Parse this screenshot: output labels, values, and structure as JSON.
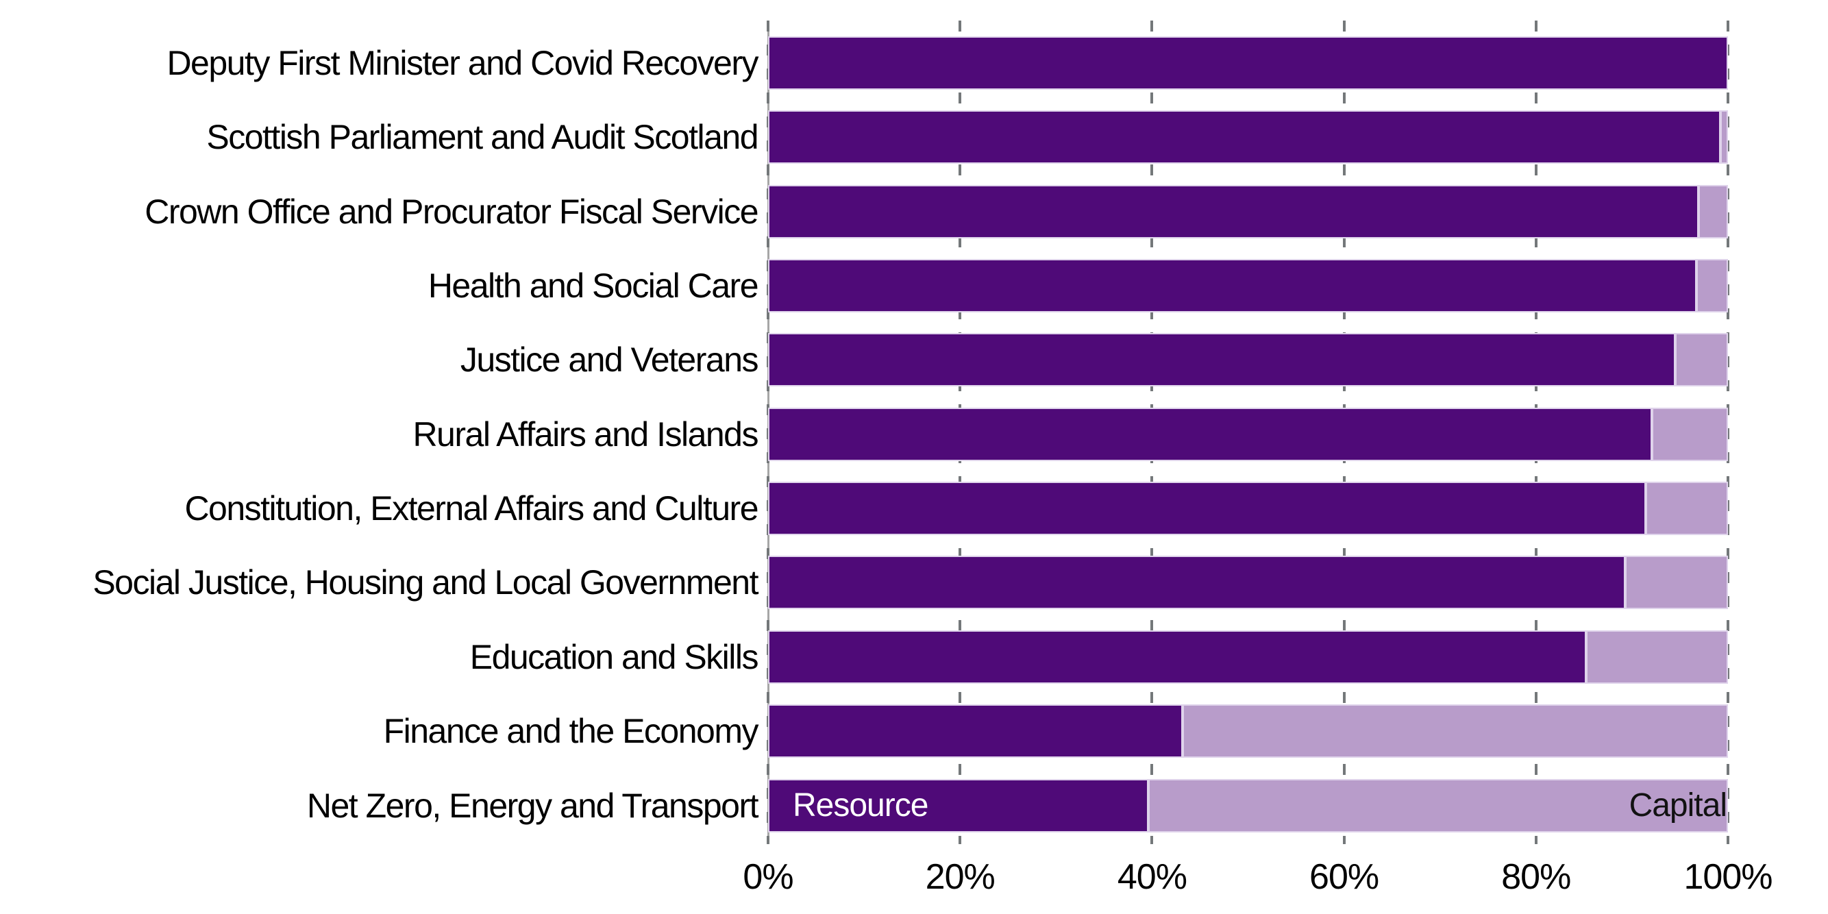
{
  "chart_data": {
    "type": "bar",
    "orientation": "horizontal",
    "stacked": true,
    "title": "",
    "xlabel": "",
    "ylabel": "",
    "categories": [
      "Deputy First Minister and Covid Recovery",
      "Scottish Parliament and Audit Scotland",
      "Crown Office and Procurator Fiscal Service",
      "Health and Social Care",
      "Justice and Veterans",
      "Rural Affairs and Islands",
      "Constitution, External Affairs and Culture",
      "Social Justice, Housing and Local Government",
      "Education and Skills",
      "Finance and the Economy",
      "Net Zero, Energy and Transport"
    ],
    "series": [
      {
        "name": "Resource",
        "color": "#4f0a78",
        "values": [
          100,
          99.2,
          96.9,
          96.7,
          94.5,
          92.1,
          91.4,
          89.3,
          85.2,
          43.2,
          39.6
        ]
      },
      {
        "name": "Capital",
        "color": "#b89cca",
        "values": [
          0,
          0.8,
          3.1,
          3.3,
          5.5,
          7.9,
          8.6,
          10.7,
          14.8,
          56.8,
          60.4
        ]
      }
    ],
    "x_axis": {
      "range": [
        0,
        100
      ],
      "tick_values": [
        0,
        20,
        40,
        60,
        80,
        100
      ],
      "tick_labels": [
        "0%",
        "20%",
        "40%",
        "60%",
        "80%",
        "100%"
      ]
    },
    "grid": "dashed-vertical-gray",
    "legend": {
      "resource_label": "Resource",
      "capital_label": "Capital",
      "position": "inside-last-bar"
    }
  },
  "colors": {
    "resource": "#4f0a78",
    "capital": "#b89cca",
    "gridline_dash": "#74787a",
    "axis_line": "#a6a6a6",
    "bar_edge": "#dfd3eb",
    "text": "#000000",
    "resource_inline_text": "#ffffff",
    "capital_inline_text": "#121212",
    "background": "#ffffff"
  }
}
